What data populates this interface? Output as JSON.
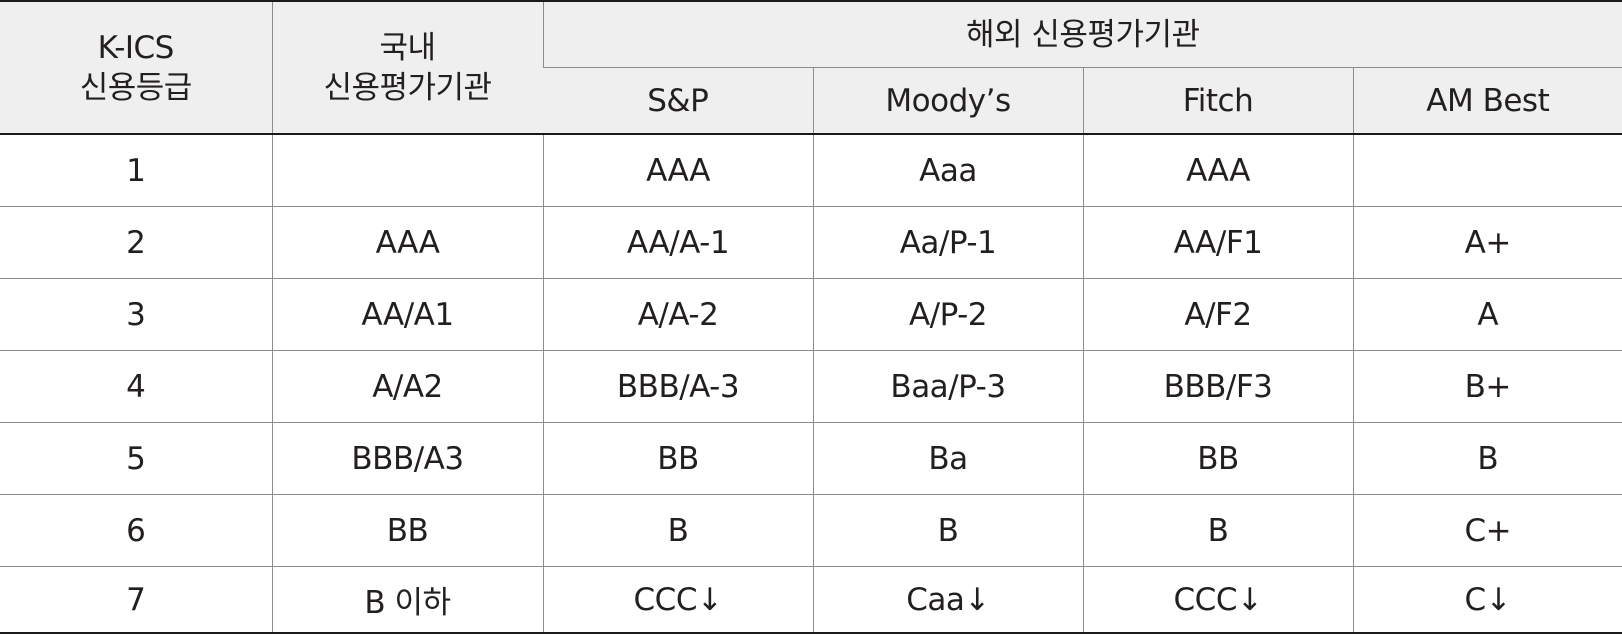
{
  "header": {
    "kics_line1": "K-ICS",
    "kics_line2": "신용등급",
    "domestic_line1": "국내",
    "domestic_line2": "신용평가기관",
    "overseas": "해외 신용평가기관",
    "agencies": [
      "S&P",
      "Moody’s",
      "Fitch",
      "AM Best"
    ]
  },
  "rows": [
    {
      "grade": "1",
      "domestic": "",
      "sp": "AAA",
      "moodys": "Aaa",
      "fitch": "AAA",
      "ambest": ""
    },
    {
      "grade": "2",
      "domestic": "AAA",
      "sp": "AA/A-1",
      "moodys": "Aa/P-1",
      "fitch": "AA/F1",
      "ambest": "A+"
    },
    {
      "grade": "3",
      "domestic": "AA/A1",
      "sp": "A/A-2",
      "moodys": "A/P-2",
      "fitch": "A/F2",
      "ambest": "A"
    },
    {
      "grade": "4",
      "domestic": "A/A2",
      "sp": "BBB/A-3",
      "moodys": "Baa/P-3",
      "fitch": "BBB/F3",
      "ambest": "B+"
    },
    {
      "grade": "5",
      "domestic": "BBB/A3",
      "sp": "BB",
      "moodys": "Ba",
      "fitch": "BB",
      "ambest": "B"
    },
    {
      "grade": "6",
      "domestic": "BB",
      "sp": "B",
      "moodys": "B",
      "fitch": "B",
      "ambest": "C+"
    },
    {
      "grade": "7",
      "domestic": "B 이하",
      "sp": "CCC↓",
      "moodys": "Caa↓",
      "fitch": "CCC↓",
      "ambest": "C↓"
    }
  ]
}
